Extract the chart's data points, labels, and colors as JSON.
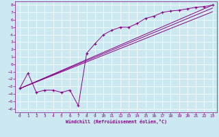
{
  "xlabel": "Windchill (Refroidissement éolien,°C)",
  "bg_color": "#cce8f0",
  "line_color": "#880088",
  "xlim": [
    -0.5,
    23.5
  ],
  "ylim": [
    -6.5,
    8.5
  ],
  "xticks": [
    0,
    1,
    2,
    3,
    4,
    5,
    6,
    7,
    8,
    9,
    10,
    11,
    12,
    13,
    14,
    15,
    16,
    17,
    18,
    19,
    20,
    21,
    22,
    23
  ],
  "yticks": [
    -6,
    -5,
    -4,
    -3,
    -2,
    -1,
    0,
    1,
    2,
    3,
    4,
    5,
    6,
    7,
    8
  ],
  "line1_x": [
    0,
    1,
    2,
    3,
    4,
    5,
    6,
    7,
    8,
    9,
    10,
    11,
    12,
    13,
    14,
    15,
    16,
    17,
    18,
    19,
    20,
    21,
    22,
    23
  ],
  "line1_y": [
    -3.3,
    -1.2,
    -3.8,
    -3.5,
    -3.5,
    -3.8,
    -3.5,
    -5.6,
    1.5,
    2.8,
    4.0,
    4.6,
    5.0,
    5.0,
    5.5,
    6.2,
    6.5,
    7.0,
    7.2,
    7.3,
    7.5,
    7.7,
    7.8,
    8.0
  ],
  "line2_x": [
    0,
    23
  ],
  "line2_y": [
    -3.3,
    8.0
  ],
  "line3_x": [
    0,
    23
  ],
  "line3_y": [
    -3.3,
    7.6
  ],
  "line4_x": [
    0,
    23
  ],
  "line4_y": [
    -3.3,
    7.1
  ]
}
